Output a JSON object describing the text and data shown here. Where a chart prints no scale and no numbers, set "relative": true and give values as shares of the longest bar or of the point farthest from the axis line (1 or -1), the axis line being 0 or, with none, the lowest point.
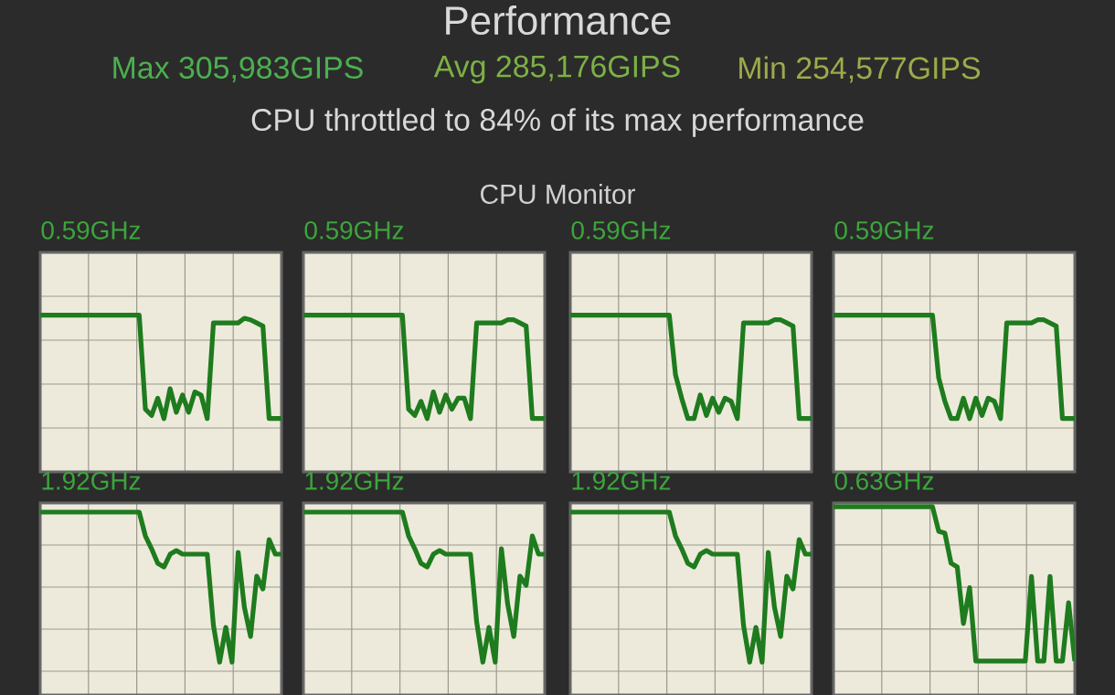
{
  "chart_data": [
    {
      "type": "other",
      "title": "Performance",
      "annotations": [
        "Max 305,983GIPS",
        "Avg 285,176GIPS",
        "Min 254,577GIPS",
        "CPU throttled to 84% of its max performance",
        "CPU Monitor"
      ]
    },
    {
      "type": "line",
      "title": "0.59GHz",
      "relative": true,
      "color": "#1e7b1e",
      "grid": true,
      "tick_labels": false,
      "categories": [
        null,
        null,
        null,
        null,
        null,
        null,
        null,
        null,
        null,
        null,
        null,
        null,
        null,
        null,
        null,
        null,
        null,
        null,
        null,
        null,
        null,
        null,
        null,
        null,
        null,
        null,
        null,
        null,
        null,
        null,
        null,
        null,
        null,
        null,
        null,
        null,
        null,
        null,
        null,
        null
      ],
      "values": [
        1,
        1,
        1,
        1,
        1,
        1,
        1,
        1,
        1,
        1,
        1,
        1,
        1,
        1,
        1,
        1,
        1,
        0.4,
        0.36,
        0.47,
        0.34,
        0.53,
        0.38,
        0.49,
        0.38,
        0.51,
        0.49,
        0.34,
        0.95,
        0.95,
        0.95,
        0.95,
        0.95,
        0.98,
        0.97,
        0.95,
        0.93,
        0.34,
        0.34,
        0.34
      ]
    },
    {
      "type": "line",
      "title": "0.59GHz",
      "relative": true,
      "color": "#1e7b1e",
      "grid": true,
      "tick_labels": false,
      "categories": [
        null,
        null,
        null,
        null,
        null,
        null,
        null,
        null,
        null,
        null,
        null,
        null,
        null,
        null,
        null,
        null,
        null,
        null,
        null,
        null,
        null,
        null,
        null,
        null,
        null,
        null,
        null,
        null,
        null,
        null,
        null,
        null,
        null,
        null,
        null,
        null,
        null,
        null,
        null,
        null
      ],
      "values": [
        1,
        1,
        1,
        1,
        1,
        1,
        1,
        1,
        1,
        1,
        1,
        1,
        1,
        1,
        1,
        1,
        1,
        0.4,
        0.36,
        0.45,
        0.34,
        0.51,
        0.38,
        0.49,
        0.4,
        0.47,
        0.47,
        0.34,
        0.95,
        0.95,
        0.95,
        0.95,
        0.95,
        0.97,
        0.97,
        0.95,
        0.93,
        0.34,
        0.34,
        0.34
      ]
    },
    {
      "type": "line",
      "title": "0.59GHz",
      "relative": true,
      "color": "#1e7b1e",
      "grid": true,
      "tick_labels": false,
      "categories": [
        null,
        null,
        null,
        null,
        null,
        null,
        null,
        null,
        null,
        null,
        null,
        null,
        null,
        null,
        null,
        null,
        null,
        null,
        null,
        null,
        null,
        null,
        null,
        null,
        null,
        null,
        null,
        null,
        null,
        null,
        null,
        null,
        null,
        null,
        null,
        null,
        null,
        null,
        null,
        null
      ],
      "values": [
        1,
        1,
        1,
        1,
        1,
        1,
        1,
        1,
        1,
        1,
        1,
        1,
        1,
        1,
        1,
        1,
        1,
        0.62,
        0.47,
        0.34,
        0.34,
        0.49,
        0.36,
        0.47,
        0.38,
        0.47,
        0.45,
        0.34,
        0.95,
        0.95,
        0.95,
        0.95,
        0.95,
        0.97,
        0.97,
        0.95,
        0.93,
        0.34,
        0.34,
        0.34
      ]
    },
    {
      "type": "line",
      "title": "0.59GHz",
      "relative": true,
      "color": "#1e7b1e",
      "grid": true,
      "tick_labels": false,
      "categories": [
        null,
        null,
        null,
        null,
        null,
        null,
        null,
        null,
        null,
        null,
        null,
        null,
        null,
        null,
        null,
        null,
        null,
        null,
        null,
        null,
        null,
        null,
        null,
        null,
        null,
        null,
        null,
        null,
        null,
        null,
        null,
        null,
        null,
        null,
        null,
        null,
        null,
        null,
        null,
        null
      ],
      "values": [
        1,
        1,
        1,
        1,
        1,
        1,
        1,
        1,
        1,
        1,
        1,
        1,
        1,
        1,
        1,
        1,
        1,
        0.6,
        0.45,
        0.34,
        0.34,
        0.47,
        0.34,
        0.47,
        0.36,
        0.47,
        0.45,
        0.34,
        0.95,
        0.95,
        0.95,
        0.95,
        0.95,
        0.97,
        0.97,
        0.95,
        0.93,
        0.34,
        0.34,
        0.34
      ]
    },
    {
      "type": "line",
      "title": "1.92GHz",
      "relative": true,
      "color": "#1e7b1e",
      "grid": true,
      "tick_labels": false,
      "categories": [
        null,
        null,
        null,
        null,
        null,
        null,
        null,
        null,
        null,
        null,
        null,
        null,
        null,
        null,
        null,
        null,
        null,
        null,
        null,
        null,
        null,
        null,
        null,
        null,
        null,
        null,
        null,
        null,
        null,
        null,
        null,
        null,
        null,
        null,
        null,
        null,
        null,
        null,
        null,
        null
      ],
      "values": [
        1,
        1,
        1,
        1,
        1,
        1,
        1,
        1,
        1,
        1,
        1,
        1,
        1,
        1,
        1,
        1,
        1,
        0.87,
        0.8,
        0.72,
        0.7,
        0.77,
        0.79,
        0.77,
        0.77,
        0.77,
        0.77,
        0.77,
        0.38,
        0.18,
        0.37,
        0.18,
        0.78,
        0.48,
        0.32,
        0.65,
        0.58,
        0.85,
        0.77,
        0.77
      ]
    },
    {
      "type": "line",
      "title": "1.92GHz",
      "relative": true,
      "color": "#1e7b1e",
      "grid": true,
      "tick_labels": false,
      "categories": [
        null,
        null,
        null,
        null,
        null,
        null,
        null,
        null,
        null,
        null,
        null,
        null,
        null,
        null,
        null,
        null,
        null,
        null,
        null,
        null,
        null,
        null,
        null,
        null,
        null,
        null,
        null,
        null,
        null,
        null,
        null,
        null,
        null,
        null,
        null,
        null,
        null,
        null,
        null,
        null
      ],
      "values": [
        1,
        1,
        1,
        1,
        1,
        1,
        1,
        1,
        1,
        1,
        1,
        1,
        1,
        1,
        1,
        1,
        1,
        0.87,
        0.8,
        0.72,
        0.7,
        0.77,
        0.79,
        0.77,
        0.77,
        0.77,
        0.77,
        0.77,
        0.4,
        0.18,
        0.37,
        0.18,
        0.8,
        0.5,
        0.32,
        0.65,
        0.6,
        0.87,
        0.77,
        0.77
      ]
    },
    {
      "type": "line",
      "title": "1.92GHz",
      "relative": true,
      "color": "#1e7b1e",
      "grid": true,
      "tick_labels": false,
      "categories": [
        null,
        null,
        null,
        null,
        null,
        null,
        null,
        null,
        null,
        null,
        null,
        null,
        null,
        null,
        null,
        null,
        null,
        null,
        null,
        null,
        null,
        null,
        null,
        null,
        null,
        null,
        null,
        null,
        null,
        null,
        null,
        null,
        null,
        null,
        null,
        null,
        null,
        null,
        null,
        null
      ],
      "values": [
        1,
        1,
        1,
        1,
        1,
        1,
        1,
        1,
        1,
        1,
        1,
        1,
        1,
        1,
        1,
        1,
        1,
        0.87,
        0.8,
        0.72,
        0.7,
        0.77,
        0.79,
        0.77,
        0.77,
        0.77,
        0.77,
        0.77,
        0.38,
        0.18,
        0.37,
        0.18,
        0.78,
        0.48,
        0.32,
        0.65,
        0.58,
        0.85,
        0.77,
        0.77
      ]
    },
    {
      "type": "line",
      "title": "0.63GHz",
      "relative": true,
      "color": "#1e7b1e",
      "grid": true,
      "tick_labels": false,
      "categories": [
        null,
        null,
        null,
        null,
        null,
        null,
        null,
        null,
        null,
        null,
        null,
        null,
        null,
        null,
        null,
        null,
        null,
        null,
        null,
        null,
        null,
        null,
        null,
        null,
        null,
        null,
        null,
        null,
        null,
        null,
        null,
        null,
        null,
        null,
        null,
        null,
        null,
        null,
        null,
        null
      ],
      "values": [
        1,
        1,
        1,
        1,
        1,
        1,
        1,
        1,
        1,
        1,
        1,
        1,
        1,
        1,
        1,
        1,
        1,
        0.87,
        0.86,
        0.7,
        0.68,
        0.38,
        0.57,
        0.18,
        0.18,
        0.18,
        0.18,
        0.18,
        0.18,
        0.18,
        0.18,
        0.18,
        0.63,
        0.18,
        0.18,
        0.63,
        0.18,
        0.18,
        0.49,
        0.18
      ]
    }
  ]
}
